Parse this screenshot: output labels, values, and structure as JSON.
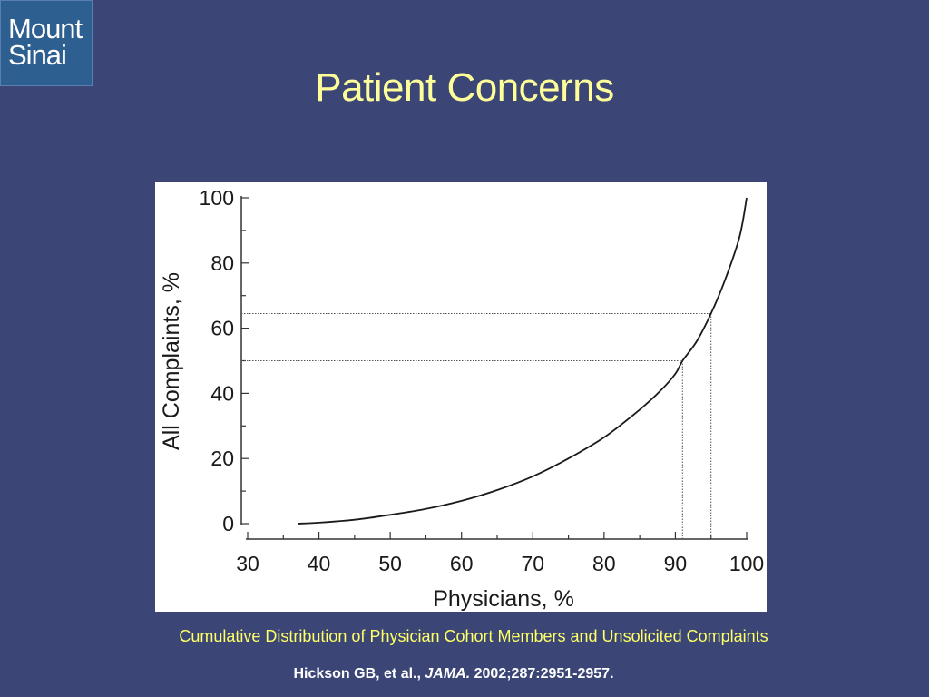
{
  "logo": {
    "line1": "Mount",
    "line2": "Sinai"
  },
  "slide": {
    "title": "Patient Concerns",
    "caption": "Cumulative Distribution of Physician Cohort Members and Unsolicited Complaints",
    "citation": {
      "authors": "Hickson GB, et al., ",
      "journal": "JAMA.",
      "ref": " 2002;287:2951-2957."
    }
  },
  "chart_data": {
    "type": "line",
    "title": "",
    "xlabel": "Physicians, %",
    "ylabel": "All Complaints, %",
    "xlim": [
      30,
      100
    ],
    "ylim": [
      0,
      100
    ],
    "xticks": [
      30,
      40,
      50,
      60,
      70,
      80,
      90,
      100
    ],
    "yticks": [
      0,
      20,
      40,
      60,
      80,
      100
    ],
    "grid": false,
    "series": [
      {
        "x": [
          37,
          40,
          45,
          50,
          55,
          60,
          65,
          70,
          75,
          80,
          85,
          88,
          90,
          91,
          93,
          95,
          97,
          99,
          100
        ],
        "y": [
          0,
          0.3,
          1.2,
          2.7,
          4.5,
          7,
          10.3,
          14.5,
          20,
          26.5,
          35,
          41,
          46,
          50,
          56,
          64.5,
          75,
          88,
          100
        ]
      }
    ],
    "reference_lines": [
      {
        "x": 91,
        "y": 50
      },
      {
        "x": 95,
        "y": 64.5
      }
    ]
  }
}
